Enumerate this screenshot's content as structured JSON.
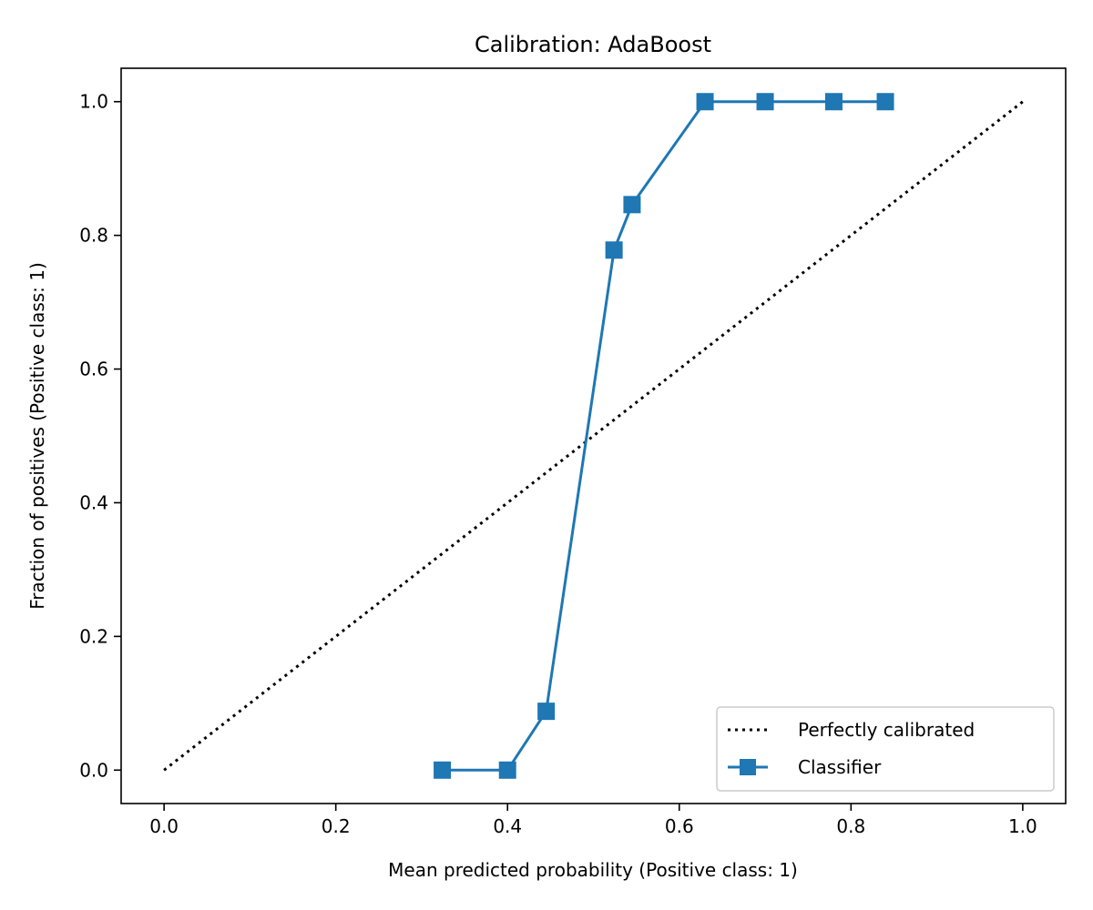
{
  "chart_data": {
    "type": "line",
    "title": "Calibration: AdaBoost",
    "xlabel": "Mean predicted probability (Positive class: 1)",
    "ylabel": "Fraction of positives (Positive class: 1)",
    "xlim": [
      -0.05,
      1.05
    ],
    "ylim": [
      -0.05,
      1.05
    ],
    "xticks": [
      0.0,
      0.2,
      0.4,
      0.6,
      0.8,
      1.0
    ],
    "xtick_labels": [
      "0.0",
      "0.2",
      "0.4",
      "0.6",
      "0.8",
      "1.0"
    ],
    "yticks": [
      0.0,
      0.2,
      0.4,
      0.6,
      0.8,
      1.0
    ],
    "ytick_labels": [
      "0.0",
      "0.2",
      "0.4",
      "0.6",
      "0.8",
      "1.0"
    ],
    "grid": false,
    "legend_position": "lower-right",
    "series": [
      {
        "name": "Perfectly calibrated",
        "color": "#000000",
        "style": "dotted",
        "marker": "none",
        "x": [
          0.0,
          1.0
        ],
        "y": [
          0.0,
          1.0
        ]
      },
      {
        "name": "Classifier",
        "color": "#1f77b4",
        "style": "solid",
        "marker": "square",
        "x": [
          0.324,
          0.4,
          0.445,
          0.524,
          0.545,
          0.63,
          0.7,
          0.78,
          0.84
        ],
        "y": [
          0.0,
          0.0,
          0.088,
          0.778,
          0.846,
          1.0,
          1.0,
          1.0,
          1.0
        ]
      }
    ]
  }
}
